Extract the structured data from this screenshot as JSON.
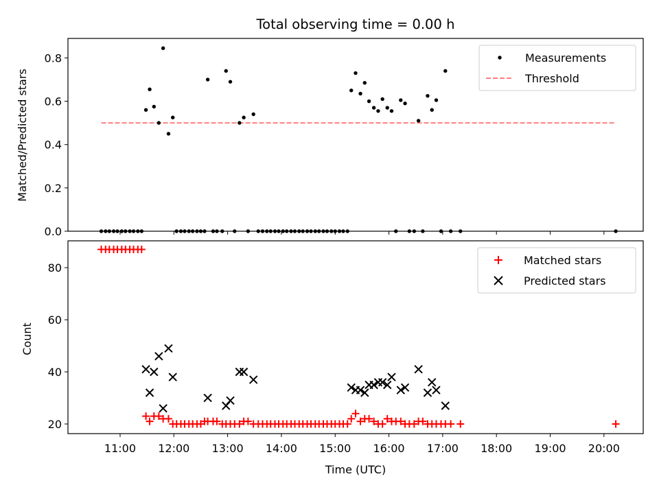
{
  "title": "Total observing time = 0.00 h",
  "chart_data": [
    {
      "type": "scatter",
      "ylabel": "Matched/Predicted stars",
      "ylim": [
        0,
        0.89
      ],
      "yticks": [
        "0.0",
        "0.2",
        "0.4",
        "0.6",
        "0.8"
      ],
      "ytick_values": [
        0,
        0.2,
        0.4,
        0.6,
        0.8
      ],
      "xlim_hours": [
        10.03,
        20.73
      ],
      "legend": {
        "placement": "top-right",
        "entries": [
          {
            "label": "Measurements",
            "marker": "dot",
            "color": "#000000"
          },
          {
            "label": "Threshold",
            "marker": "dashed-line",
            "color": "#ff7f7f"
          }
        ]
      },
      "threshold": {
        "value": 0.5,
        "x_start_hours": 10.65,
        "x_end_hours": 20.2,
        "color": "#ff7f7f"
      },
      "series": [
        {
          "name": "Measurements",
          "color": "#000000",
          "x_hours": [
            10.65,
            10.73,
            10.8,
            10.88,
            10.95,
            11.03,
            11.1,
            11.18,
            11.25,
            11.33,
            11.4,
            11.48,
            11.55,
            11.63,
            11.72,
            11.8,
            11.9,
            11.98,
            12.05,
            12.13,
            12.2,
            12.28,
            12.35,
            12.43,
            12.5,
            12.57,
            12.63,
            12.73,
            12.8,
            12.9,
            12.97,
            13.05,
            13.13,
            13.22,
            13.3,
            13.38,
            13.48,
            13.57,
            13.65,
            13.73,
            13.8,
            13.88,
            13.95,
            14.03,
            14.1,
            14.18,
            14.25,
            14.33,
            14.4,
            14.48,
            14.55,
            14.63,
            14.7,
            14.78,
            14.85,
            14.93,
            15.0,
            15.08,
            15.15,
            15.23,
            15.3,
            15.38,
            15.47,
            15.55,
            15.63,
            15.72,
            15.8,
            15.88,
            15.97,
            16.05,
            16.13,
            16.22,
            16.3,
            16.38,
            16.47,
            16.55,
            16.63,
            16.72,
            16.8,
            16.88,
            16.97,
            17.05,
            17.15,
            17.33,
            20.22
          ],
          "y": [
            0,
            0,
            0,
            0,
            0,
            0,
            0,
            0,
            0,
            0,
            0,
            0.56,
            0.655,
            0.575,
            0.5,
            0.845,
            0.45,
            0.525,
            0,
            0,
            0,
            0,
            0,
            0,
            0,
            0,
            0.7,
            0,
            0,
            0,
            0.74,
            0.69,
            0,
            0.5,
            0.525,
            0,
            0.54,
            0,
            0,
            0,
            0,
            0,
            0,
            0,
            0,
            0,
            0,
            0,
            0,
            0,
            0,
            0,
            0,
            0,
            0,
            0,
            0,
            0,
            0,
            0,
            0.65,
            0.73,
            0.635,
            0.685,
            0.6,
            0.57,
            0.555,
            0.61,
            0.57,
            0.555,
            0,
            0.605,
            0.59,
            0,
            0,
            0.51,
            0,
            0.625,
            0.56,
            0.605,
            0,
            0.74,
            0,
            0,
            0
          ]
        }
      ]
    },
    {
      "type": "scatter",
      "xlabel": "Time (UTC)",
      "ylabel": "Count",
      "ylim": [
        16.3,
        90.3
      ],
      "yticks": [
        "20",
        "40",
        "60",
        "80"
      ],
      "ytick_values": [
        20,
        40,
        60,
        80
      ],
      "xticks": [
        "11:00",
        "12:00",
        "13:00",
        "14:00",
        "15:00",
        "16:00",
        "17:00",
        "18:00",
        "19:00",
        "20:00"
      ],
      "xtick_hours": [
        11,
        12,
        13,
        14,
        15,
        16,
        17,
        18,
        19,
        20
      ],
      "xlim_hours": [
        10.03,
        20.73
      ],
      "legend": {
        "placement": "top-right",
        "entries": [
          {
            "label": "Matched stars",
            "marker": "plus",
            "color": "#ff0000"
          },
          {
            "label": "Predicted stars",
            "marker": "x",
            "color": "#000000"
          }
        ]
      },
      "series": [
        {
          "name": "Matched stars",
          "marker": "plus",
          "color": "#ff0000",
          "x_hours": [
            10.65,
            10.73,
            10.8,
            10.88,
            10.95,
            11.03,
            11.1,
            11.18,
            11.25,
            11.33,
            11.4,
            11.48,
            11.55,
            11.63,
            11.72,
            11.8,
            11.9,
            11.98,
            12.05,
            12.13,
            12.2,
            12.28,
            12.35,
            12.43,
            12.5,
            12.57,
            12.63,
            12.73,
            12.8,
            12.9,
            12.97,
            13.05,
            13.13,
            13.22,
            13.3,
            13.38,
            13.48,
            13.57,
            13.65,
            13.73,
            13.8,
            13.88,
            13.95,
            14.03,
            14.1,
            14.18,
            14.25,
            14.33,
            14.4,
            14.48,
            14.55,
            14.63,
            14.7,
            14.78,
            14.85,
            14.93,
            15.0,
            15.08,
            15.15,
            15.23,
            15.3,
            15.38,
            15.47,
            15.55,
            15.63,
            15.72,
            15.8,
            15.88,
            15.97,
            16.05,
            16.13,
            16.22,
            16.3,
            16.38,
            16.47,
            16.55,
            16.63,
            16.72,
            16.8,
            16.88,
            16.97,
            17.05,
            17.15,
            17.33,
            20.22
          ],
          "y": [
            87,
            87,
            87,
            87,
            87,
            87,
            87,
            87,
            87,
            87,
            87,
            23,
            21,
            23,
            23,
            22,
            22,
            20,
            20,
            20,
            20,
            20,
            20,
            20,
            20,
            21,
            21,
            21,
            21,
            20,
            20,
            20,
            20,
            20,
            21,
            21,
            20,
            20,
            20,
            20,
            20,
            20,
            20,
            20,
            20,
            20,
            20,
            20,
            20,
            20,
            20,
            20,
            20,
            20,
            20,
            20,
            20,
            20,
            20,
            20,
            22,
            24,
            21,
            22,
            22,
            21,
            20,
            20,
            22,
            21,
            21,
            21,
            20,
            20,
            20,
            21,
            21,
            20,
            20,
            20,
            20,
            20,
            20,
            20,
            20
          ]
        },
        {
          "name": "Predicted stars",
          "marker": "x",
          "color": "#000000",
          "x_hours": [
            11.48,
            11.55,
            11.63,
            11.72,
            11.8,
            11.9,
            11.98,
            12.63,
            12.97,
            13.05,
            13.22,
            13.3,
            13.48,
            15.3,
            15.38,
            15.47,
            15.55,
            15.63,
            15.72,
            15.8,
            15.88,
            15.97,
            16.05,
            16.22,
            16.3,
            16.55,
            16.72,
            16.8,
            16.88,
            17.05
          ],
          "y": [
            41,
            32,
            40,
            46,
            26,
            49,
            38,
            30,
            27,
            29,
            40,
            40,
            37,
            34,
            33,
            33,
            32,
            35,
            35,
            36,
            36,
            35,
            38,
            33,
            34,
            41,
            32,
            36,
            33,
            27
          ]
        }
      ]
    }
  ]
}
